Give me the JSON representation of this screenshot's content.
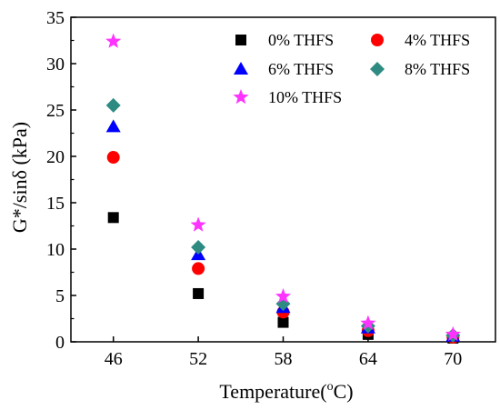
{
  "chart_data": {
    "type": "scatter",
    "xlabel": "Temperature(°C)",
    "xlabel_main": "Temperature(",
    "xlabel_sup": "o",
    "xlabel_end": "C)",
    "ylabel": "G*/sinδ (kPa)",
    "categories": [
      "46",
      "52",
      "58",
      "64",
      "70"
    ],
    "x": [
      46,
      52,
      58,
      64,
      70
    ],
    "ylim": [
      0,
      35
    ],
    "yticks": [
      "0",
      "5",
      "10",
      "15",
      "20",
      "25",
      "30",
      "35"
    ],
    "legend_position": "top-right",
    "series": [
      {
        "name": "0% THFS",
        "marker": "square",
        "color": "#000000",
        "values": [
          13.4,
          5.2,
          2.1,
          0.8,
          0.4
        ]
      },
      {
        "name": "4% THFS",
        "marker": "circle",
        "color": "#ff0000",
        "values": [
          19.9,
          7.9,
          3.2,
          1.2,
          0.5
        ]
      },
      {
        "name": "6% THFS",
        "marker": "triangle",
        "color": "#0000ff",
        "values": [
          23.2,
          9.4,
          3.7,
          1.5,
          0.6
        ]
      },
      {
        "name": "8% THFS",
        "marker": "diamond",
        "color": "#2e8b82",
        "values": [
          25.5,
          10.2,
          4.1,
          1.7,
          0.7
        ]
      },
      {
        "name": "10% THFS",
        "marker": "star",
        "color": "#ff33ff",
        "values": [
          32.4,
          12.6,
          4.9,
          2.0,
          0.8
        ]
      }
    ]
  }
}
